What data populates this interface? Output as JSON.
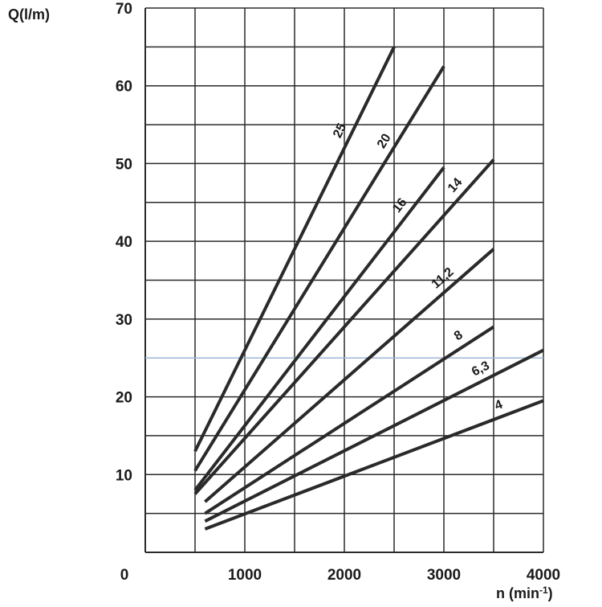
{
  "chart_data": {
    "type": "line",
    "title": "",
    "xlabel": "n (min-1)",
    "ylabel": "Q(l/m)",
    "xlim": [
      0,
      4000
    ],
    "ylim": [
      0,
      70
    ],
    "grid": true,
    "x_ticks": [
      0,
      1000,
      2000,
      3000,
      4000
    ],
    "y_ticks": [
      10,
      20,
      30,
      40,
      50,
      60,
      70
    ],
    "x_tick_labels": [
      "0",
      "1000",
      "2000",
      "3000",
      "4000"
    ],
    "y_tick_labels": [
      "10",
      "20",
      "30",
      "40",
      "50",
      "60",
      "70"
    ],
    "reference_line": {
      "y": 25,
      "color": "#9fb6d9"
    },
    "series": [
      {
        "name": "25",
        "x": [
          500,
          2500
        ],
        "y": [
          13,
          65
        ]
      },
      {
        "name": "20",
        "x": [
          500,
          3000
        ],
        "y": [
          10.5,
          62.5
        ]
      },
      {
        "name": "16",
        "x": [
          500,
          3000
        ],
        "y": [
          8,
          49.5
        ]
      },
      {
        "name": "14",
        "x": [
          500,
          3500
        ],
        "y": [
          7.5,
          50.5
        ]
      },
      {
        "name": "11,2",
        "x": [
          600,
          3500
        ],
        "y": [
          6.5,
          39
        ]
      },
      {
        "name": "8",
        "x": [
          600,
          3500
        ],
        "y": [
          5,
          29
        ]
      },
      {
        "name": "6,3",
        "x": [
          600,
          4000
        ],
        "y": [
          4,
          26
        ]
      },
      {
        "name": "4",
        "x": [
          600,
          4000
        ],
        "y": [
          3,
          19.5
        ]
      }
    ],
    "line_color": "#2a2a2a",
    "grid_color": "#2a2a2a"
  }
}
